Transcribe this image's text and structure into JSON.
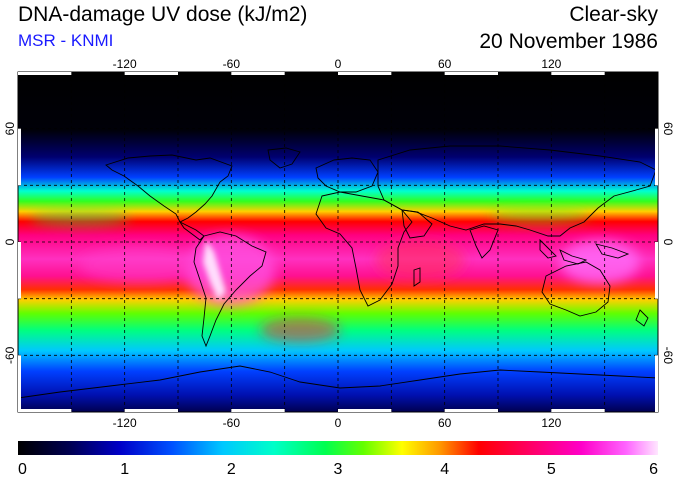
{
  "title": "DNA-damage UV dose (kJ/m2)",
  "source": "MSR - KNMI",
  "condition": "Clear-sky",
  "date": "20 November 1986",
  "colors": {
    "source_text": "#1a1aff",
    "scale": [
      "#000000",
      "#000050",
      "#0000c8",
      "#0050ff",
      "#00c8ff",
      "#00ffc8",
      "#00ff50",
      "#64ff00",
      "#ffff00",
      "#ff9600",
      "#ff0000",
      "#ff0064",
      "#ff00c8",
      "#ff64ff",
      "#ffe6ff"
    ]
  },
  "map": {
    "lon_ticks": [
      "-120",
      "-60",
      "0",
      "60",
      "120"
    ],
    "lat_ticks_left": [
      "60",
      "0",
      "-60"
    ],
    "lat_ticks_right": [
      "60",
      "0",
      "-60"
    ],
    "lon_values": [
      -120,
      -60,
      0,
      60,
      120
    ],
    "lat_values": [
      60,
      0,
      -60
    ],
    "lon_range": [
      -180,
      180
    ],
    "lat_range": [
      -90,
      90
    ],
    "gridlines": "dashed every 30 degrees"
  },
  "colorbar": {
    "min": 0,
    "max": 6,
    "labels": [
      "0",
      "1",
      "2",
      "3",
      "4",
      "5",
      "6"
    ]
  }
}
